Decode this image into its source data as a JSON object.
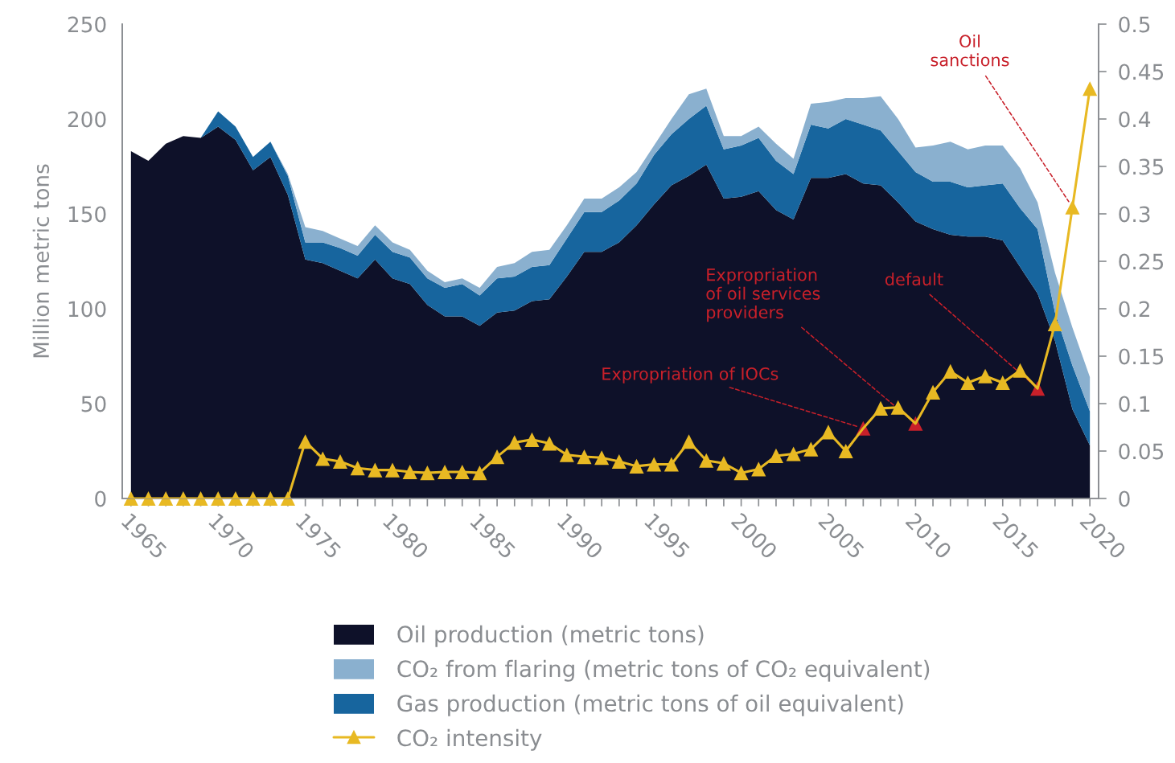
{
  "chart_data": {
    "type": "area",
    "stacked": true,
    "ylabel": "Million metric tons",
    "x": [
      1965,
      1966,
      1967,
      1968,
      1969,
      1970,
      1971,
      1972,
      1973,
      1974,
      1975,
      1976,
      1977,
      1978,
      1979,
      1980,
      1981,
      1982,
      1983,
      1984,
      1985,
      1986,
      1987,
      1988,
      1989,
      1990,
      1991,
      1992,
      1993,
      1994,
      1995,
      1996,
      1997,
      1998,
      1999,
      2000,
      2001,
      2002,
      2003,
      2004,
      2005,
      2006,
      2007,
      2008,
      2009,
      2010,
      2011,
      2012,
      2013,
      2014,
      2015,
      2016,
      2017,
      2018,
      2019,
      2020
    ],
    "series": [
      {
        "name": "Oil production (metric tons)",
        "color": "#0e1129",
        "values": [
          183,
          178,
          187,
          191,
          190,
          196,
          189,
          173,
          180,
          160,
          126,
          124,
          120,
          116,
          126,
          116,
          113,
          102,
          96,
          96,
          91,
          98,
          99,
          104,
          105,
          117,
          130,
          130,
          135,
          144,
          155,
          165,
          170,
          176,
          158,
          159,
          162,
          152,
          147,
          169,
          169,
          171,
          166,
          165,
          156,
          146,
          142,
          139,
          138,
          138,
          136,
          122,
          108,
          83,
          47,
          28
        ]
      },
      {
        "name": "Gas production (metric tons of oil equivalent)",
        "color": "#17659e",
        "values": [
          0,
          0,
          0,
          0,
          0,
          8,
          7,
          7,
          8,
          10,
          9,
          11,
          12,
          12,
          13,
          14,
          14,
          14,
          15,
          17,
          16,
          18,
          18,
          18,
          18,
          20,
          21,
          21,
          22,
          22,
          26,
          27,
          30,
          31,
          26,
          27,
          28,
          26,
          24,
          28,
          26,
          29,
          31,
          29,
          27,
          26,
          25,
          28,
          26,
          27,
          30,
          31,
          34,
          15,
          23,
          18
        ]
      },
      {
        "name": "CO₂ from flaring (metric tons of CO₂ equivalent)",
        "color": "#8ab0cf",
        "values": [
          0,
          0,
          0,
          0,
          0,
          0,
          0,
          0,
          0,
          1,
          8,
          6,
          5,
          5,
          5,
          5,
          4,
          4,
          3,
          3,
          4,
          6,
          7,
          8,
          8,
          7,
          7,
          7,
          7,
          6,
          5,
          8,
          13,
          9,
          7,
          5,
          6,
          9,
          8,
          11,
          14,
          11,
          14,
          18,
          17,
          13,
          19,
          21,
          20,
          21,
          20,
          21,
          14,
          21,
          20,
          18
        ]
      },
      {
        "name": "CO₂ intensity",
        "type": "line",
        "axis": "y2",
        "marker": "triangle",
        "color": "#e8b923",
        "values": [
          0,
          0,
          0,
          0,
          0,
          0,
          0,
          0,
          0,
          0,
          0.06,
          0.042,
          0.039,
          0.032,
          0.03,
          0.03,
          0.028,
          0.027,
          0.028,
          0.028,
          0.027,
          0.044,
          0.059,
          0.062,
          0.058,
          0.046,
          0.044,
          0.043,
          0.039,
          0.034,
          0.036,
          0.036,
          0.06,
          0.04,
          0.037,
          0.027,
          0.031,
          0.045,
          0.047,
          0.052,
          0.07,
          0.05,
          0.074,
          0.095,
          0.096,
          0.079,
          0.112,
          0.134,
          0.122,
          0.129,
          0.122,
          0.135,
          0.116,
          0.184,
          0.307,
          0.432
        ],
        "colors": [
          "#e8b923",
          "#e8b923",
          "#e8b923",
          "#e8b923",
          "#e8b923",
          "#e8b923",
          "#e8b923",
          "#e8b923",
          "#e8b923",
          "#e8b923",
          "#e8b923",
          "#e8b923",
          "#e8b923",
          "#e8b923",
          "#e8b923",
          "#e8b923",
          "#e8b923",
          "#e8b923",
          "#e8b923",
          "#e8b923",
          "#e8b923",
          "#e8b923",
          "#e8b923",
          "#e8b923",
          "#e8b923",
          "#e8b923",
          "#e8b923",
          "#e8b923",
          "#e8b923",
          "#e8b923",
          "#e8b923",
          "#e8b923",
          "#e8b923",
          "#e8b923",
          "#e8b923",
          "#e8b923",
          "#e8b923",
          "#e8b923",
          "#e8b923",
          "#e8b923",
          "#e8b923",
          "#e8b923",
          "#c8202a",
          "#e8b923",
          "#e8b923",
          "#c8202a",
          "#e8b923",
          "#e8b923",
          "#e8b923",
          "#e8b923",
          "#e8b923",
          "#e8b923",
          "#c8202a",
          "#e8b923",
          "#e8b923",
          "#e8b923"
        ]
      }
    ],
    "xlim": [
      1964.5,
      2020.5
    ],
    "xticks": [
      1965,
      {
        "value": 1966,
        "label": null
      },
      {
        "value": 1967,
        "label": null
      },
      {
        "value": 1968,
        "label": null
      },
      {
        "value": 1969,
        "label": null
      },
      1970,
      {
        "value": 1971,
        "label": null
      },
      {
        "value": 1972,
        "label": null
      },
      {
        "value": 1973,
        "label": null
      },
      {
        "value": 1974,
        "label": null
      },
      1975,
      {
        "value": 1976,
        "label": null
      },
      {
        "value": 1977,
        "label": null
      },
      {
        "value": 1978,
        "label": null
      },
      {
        "value": 1979,
        "label": null
      },
      1980,
      {
        "value": 1981,
        "label": null
      },
      {
        "value": 1982,
        "label": null
      },
      {
        "value": 1983,
        "label": null
      },
      {
        "value": 1984,
        "label": null
      },
      1985,
      {
        "value": 1986,
        "label": null
      },
      {
        "value": 1987,
        "label": null
      },
      {
        "value": 1988,
        "label": null
      },
      {
        "value": 1989,
        "label": null
      },
      1990,
      {
        "value": 1991,
        "label": null
      },
      {
        "value": 1992,
        "label": null
      },
      {
        "value": 1993,
        "label": null
      },
      {
        "value": 1994,
        "label": null
      },
      1995,
      {
        "value": 1996,
        "label": null
      },
      {
        "value": 1997,
        "label": null
      },
      {
        "value": 1998,
        "label": null
      },
      {
        "value": 1999,
        "label": null
      },
      2000,
      {
        "value": 2001,
        "label": null
      },
      {
        "value": 2002,
        "label": null
      },
      {
        "value": 2003,
        "label": null
      },
      {
        "value": 2004,
        "label": null
      },
      2005,
      {
        "value": 2006,
        "label": null
      },
      {
        "value": 2007,
        "label": null
      },
      {
        "value": 2008,
        "label": null
      },
      {
        "value": 2009,
        "label": null
      },
      2010,
      {
        "value": 2011,
        "label": null
      },
      {
        "value": 2012,
        "label": null
      },
      {
        "value": 2013,
        "label": null
      },
      {
        "value": 2014,
        "label": null
      },
      2015,
      {
        "value": 2016,
        "label": null
      },
      {
        "value": 2017,
        "label": null
      },
      {
        "value": 2018,
        "label": null
      },
      {
        "value": 2019,
        "label": null
      },
      2020
    ],
    "ylim": [
      0,
      250
    ],
    "yticks": [
      0,
      50,
      100,
      150,
      200,
      250
    ],
    "y2lim": [
      0,
      0.5
    ],
    "y2ticks": [
      0,
      0.05,
      0.1,
      0.15,
      0.2,
      0.25,
      0.3,
      0.35,
      0.4,
      0.45,
      0.5
    ],
    "grid": false,
    "legend": "bottom",
    "annotations": [
      {
        "text": "Expropriation of IOCs",
        "x": 2007,
        "y": 37
      },
      {
        "text": "Expropriation\nof oil services\nproviders",
        "x": 2010,
        "y": 39.5
      },
      {
        "text": "default",
        "x": 2017,
        "y": 58
      },
      {
        "text": "Oil\nsanctions",
        "x": 2019,
        "y": 153.5
      }
    ]
  }
}
